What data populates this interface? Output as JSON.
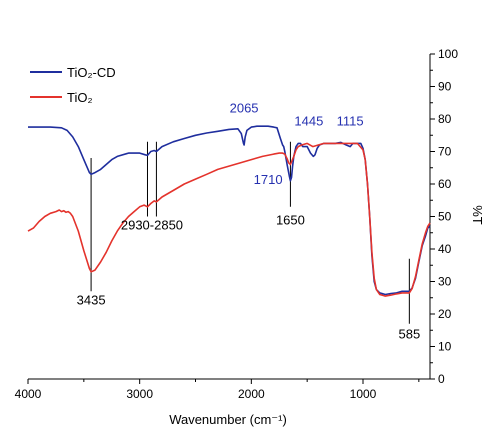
{
  "chart_data": {
    "type": "line",
    "xlabel": "Wavenumber (cm⁻¹)",
    "ylabel": "%T",
    "xlim": [
      4000,
      400
    ],
    "ylim": [
      0,
      100
    ],
    "x_ticks": [
      4000,
      3000,
      2000,
      1000
    ],
    "y_ticks": [
      0,
      10,
      20,
      30,
      40,
      50,
      60,
      70,
      80,
      90,
      100
    ],
    "x_reversed": true,
    "grid": false,
    "legend_position": "top-left",
    "series": [
      {
        "name": "TiO₂-CD",
        "color": "#1f2e9e",
        "points": [
          [
            4000,
            77.5
          ],
          [
            3800,
            77.5
          ],
          [
            3700,
            77.3
          ],
          [
            3650,
            76.5
          ],
          [
            3600,
            74.5
          ],
          [
            3550,
            71.5
          ],
          [
            3500,
            67.5
          ],
          [
            3450,
            63.5
          ],
          [
            3435,
            63
          ],
          [
            3400,
            63.5
          ],
          [
            3350,
            64.5
          ],
          [
            3300,
            66
          ],
          [
            3250,
            67.5
          ],
          [
            3200,
            68.5
          ],
          [
            3100,
            69.5
          ],
          [
            3000,
            69.5
          ],
          [
            2950,
            69
          ],
          [
            2930,
            68.8
          ],
          [
            2900,
            70
          ],
          [
            2870,
            70.3
          ],
          [
            2850,
            70
          ],
          [
            2800,
            71.5
          ],
          [
            2700,
            73
          ],
          [
            2600,
            74
          ],
          [
            2500,
            75
          ],
          [
            2400,
            75.7
          ],
          [
            2300,
            76.2
          ],
          [
            2200,
            76.8
          ],
          [
            2120,
            77
          ],
          [
            2090,
            75.5
          ],
          [
            2070,
            72.5
          ],
          [
            2065,
            72
          ],
          [
            2055,
            74.5
          ],
          [
            2040,
            76.5
          ],
          [
            2000,
            77.5
          ],
          [
            1950,
            77.8
          ],
          [
            1900,
            77.8
          ],
          [
            1850,
            77.8
          ],
          [
            1800,
            77.5
          ],
          [
            1770,
            77.3
          ],
          [
            1740,
            74
          ],
          [
            1720,
            72
          ],
          [
            1710,
            71.5
          ],
          [
            1700,
            70
          ],
          [
            1680,
            66
          ],
          [
            1660,
            62.5
          ],
          [
            1650,
            61
          ],
          [
            1640,
            62
          ],
          [
            1630,
            65.5
          ],
          [
            1620,
            68.5
          ],
          [
            1600,
            71.5
          ],
          [
            1580,
            72.5
          ],
          [
            1560,
            72.5
          ],
          [
            1540,
            71.5
          ],
          [
            1500,
            71.5
          ],
          [
            1470,
            69.5
          ],
          [
            1445,
            68.5
          ],
          [
            1430,
            69
          ],
          [
            1410,
            71
          ],
          [
            1390,
            72
          ],
          [
            1350,
            72.5
          ],
          [
            1300,
            72.5
          ],
          [
            1250,
            72.5
          ],
          [
            1200,
            72.8
          ],
          [
            1150,
            72
          ],
          [
            1115,
            71.5
          ],
          [
            1090,
            72.5
          ],
          [
            1060,
            72.5
          ],
          [
            1020,
            72.5
          ],
          [
            1000,
            71
          ],
          [
            980,
            67.5
          ],
          [
            960,
            60
          ],
          [
            940,
            50
          ],
          [
            920,
            38
          ],
          [
            900,
            30
          ],
          [
            880,
            27.5
          ],
          [
            850,
            26.5
          ],
          [
            800,
            26
          ],
          [
            750,
            26.3
          ],
          [
            700,
            26.5
          ],
          [
            650,
            27
          ],
          [
            600,
            27
          ],
          [
            585,
            27
          ],
          [
            560,
            28
          ],
          [
            530,
            31
          ],
          [
            500,
            36
          ],
          [
            470,
            41
          ],
          [
            440,
            44
          ],
          [
            420,
            46.5
          ],
          [
            400,
            47
          ]
        ]
      },
      {
        "name": "TiO₂",
        "color": "#e4332c",
        "points": [
          [
            4000,
            45.5
          ],
          [
            3950,
            46.5
          ],
          [
            3900,
            48.5
          ],
          [
            3850,
            50
          ],
          [
            3800,
            51
          ],
          [
            3750,
            51.5
          ],
          [
            3720,
            52
          ],
          [
            3700,
            51.5
          ],
          [
            3680,
            51.8
          ],
          [
            3660,
            51.3
          ],
          [
            3640,
            51.5
          ],
          [
            3620,
            51
          ],
          [
            3600,
            50
          ],
          [
            3550,
            45.5
          ],
          [
            3500,
            39.5
          ],
          [
            3450,
            34
          ],
          [
            3435,
            33
          ],
          [
            3400,
            33.5
          ],
          [
            3350,
            36
          ],
          [
            3300,
            39
          ],
          [
            3250,
            42.5
          ],
          [
            3200,
            45.5
          ],
          [
            3150,
            48
          ],
          [
            3100,
            50
          ],
          [
            3050,
            51.5
          ],
          [
            3000,
            53
          ],
          [
            2960,
            53.5
          ],
          [
            2930,
            53
          ],
          [
            2900,
            54
          ],
          [
            2870,
            54.8
          ],
          [
            2850,
            54.5
          ],
          [
            2800,
            56
          ],
          [
            2700,
            58
          ],
          [
            2600,
            60
          ],
          [
            2500,
            61.5
          ],
          [
            2400,
            63
          ],
          [
            2300,
            64.5
          ],
          [
            2200,
            65.5
          ],
          [
            2100,
            66.5
          ],
          [
            2000,
            67.5
          ],
          [
            1900,
            68.5
          ],
          [
            1800,
            69.2
          ],
          [
            1750,
            69.5
          ],
          [
            1720,
            69.5
          ],
          [
            1700,
            69.2
          ],
          [
            1680,
            67.8
          ],
          [
            1665,
            66.5
          ],
          [
            1650,
            66
          ],
          [
            1640,
            66.8
          ],
          [
            1620,
            68.5
          ],
          [
            1600,
            70.5
          ],
          [
            1580,
            71.5
          ],
          [
            1550,
            72
          ],
          [
            1500,
            72.5
          ],
          [
            1450,
            71.5
          ],
          [
            1400,
            72
          ],
          [
            1350,
            72.5
          ],
          [
            1300,
            72.5
          ],
          [
            1250,
            72.5
          ],
          [
            1200,
            72.5
          ],
          [
            1150,
            72.5
          ],
          [
            1100,
            72.5
          ],
          [
            1050,
            72.5
          ],
          [
            1000,
            70.5
          ],
          [
            980,
            67.5
          ],
          [
            960,
            60
          ],
          [
            940,
            50
          ],
          [
            920,
            39
          ],
          [
            900,
            31
          ],
          [
            880,
            27.5
          ],
          [
            850,
            26
          ],
          [
            800,
            25.5
          ],
          [
            750,
            25.8
          ],
          [
            700,
            26.2
          ],
          [
            650,
            26.5
          ],
          [
            600,
            26.5
          ],
          [
            585,
            26.5
          ],
          [
            560,
            27.8
          ],
          [
            530,
            31.5
          ],
          [
            500,
            36.5
          ],
          [
            470,
            41.5
          ],
          [
            440,
            45
          ],
          [
            420,
            47
          ],
          [
            400,
            48
          ]
        ]
      }
    ],
    "annotations": [
      {
        "label": "2065",
        "x": 2065,
        "y": 82,
        "color": "#2631b0",
        "anchor": "middle"
      },
      {
        "label": "1445",
        "x": 1485,
        "y": 78,
        "color": "#2631b0",
        "anchor": "middle"
      },
      {
        "label": "1115",
        "x": 1115,
        "y": 78,
        "color": "#2631b0",
        "anchor": "middle"
      },
      {
        "label": "1710",
        "x": 1720,
        "y": 60,
        "color": "#2631b0",
        "anchor": "end"
      },
      {
        "label": "1650",
        "x": 1650,
        "y": 47.5,
        "color": "#000000",
        "anchor": "middle"
      },
      {
        "label": "2930-2850",
        "x": 2890,
        "y": 46,
        "color": "#000000",
        "anchor": "middle"
      },
      {
        "label": "3435",
        "x": 3435,
        "y": 23,
        "color": "#000000",
        "anchor": "middle"
      },
      {
        "label": "585",
        "x": 585,
        "y": 12.5,
        "color": "#000000",
        "anchor": "middle"
      }
    ],
    "marker_lines": [
      {
        "x": 3435,
        "y1": 68,
        "y2": 27
      },
      {
        "x": 2930,
        "y1": 73,
        "y2": 50
      },
      {
        "x": 2850,
        "y1": 73,
        "y2": 50
      },
      {
        "x": 1650,
        "y1": 73,
        "y2": 53
      },
      {
        "x": 585,
        "y1": 37,
        "y2": 17
      }
    ]
  }
}
